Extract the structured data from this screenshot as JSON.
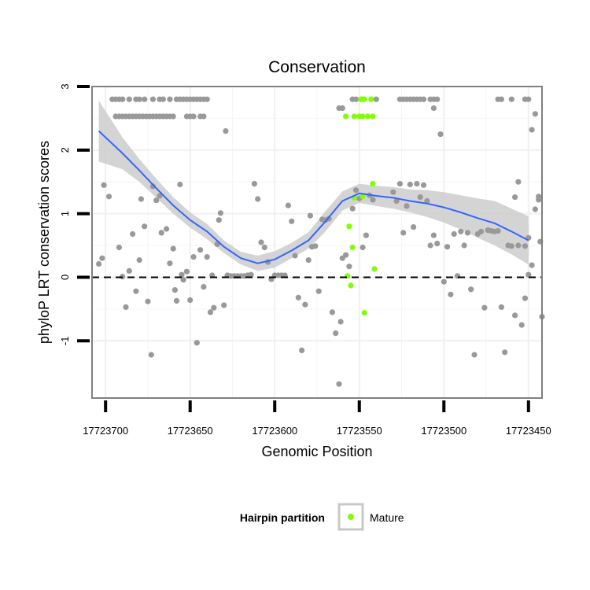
{
  "chart_data": {
    "type": "scatter",
    "title": "Conservation",
    "xlabel": "Genomic Position",
    "ylabel": "phyloP LRT conservation scores",
    "x_reversed": true,
    "xlim": [
      17723708,
      17723442
    ],
    "ylim": [
      -1.9,
      3.0
    ],
    "x_ticks": [
      17723700,
      17723650,
      17723600,
      17723550,
      17723500,
      17723450
    ],
    "x_tick_labels": [
      "17723700",
      "17723650",
      "17723600",
      "17723550",
      "17723500",
      "17723450"
    ],
    "y_ticks": [
      -1,
      0,
      1,
      2,
      3
    ],
    "y_tick_labels": [
      "-1",
      "0",
      "1",
      "2",
      "3"
    ],
    "reference_line": {
      "y": 0,
      "style": "dashed"
    },
    "grid": true,
    "legend": {
      "title": "Hairpin partition",
      "placement": "bottom",
      "entries": [
        {
          "label": "Mature",
          "color": "#7fff00"
        }
      ]
    },
    "colors": {
      "points": "#999999",
      "mature": "#7fff00",
      "smooth": "#3366ff",
      "ribbon": "#cccccc",
      "panel_border": "#808080"
    },
    "series": [
      {
        "points": [
          [
            17723696,
            2.8
          ],
          [
            17723694,
            2.8
          ],
          [
            17723692,
            2.8
          ],
          [
            17723690,
            2.8
          ],
          [
            17723686,
            2.8
          ],
          [
            17723682,
            2.8
          ],
          [
            17723680,
            2.8
          ],
          [
            17723677,
            2.8
          ],
          [
            17723672,
            2.8
          ],
          [
            17723668,
            2.8
          ],
          [
            17723666,
            2.8
          ],
          [
            17723662,
            2.8
          ],
          [
            17723658,
            2.8
          ],
          [
            17723656,
            2.8
          ],
          [
            17723654,
            2.8
          ],
          [
            17723652,
            2.8
          ],
          [
            17723650,
            2.8
          ],
          [
            17723648,
            2.8
          ],
          [
            17723646,
            2.8
          ],
          [
            17723644,
            2.8
          ],
          [
            17723642,
            2.8
          ],
          [
            17723640,
            2.8
          ],
          [
            17723694,
            2.53
          ],
          [
            17723692,
            2.53
          ],
          [
            17723690,
            2.53
          ],
          [
            17723688,
            2.53
          ],
          [
            17723686,
            2.53
          ],
          [
            17723684,
            2.53
          ],
          [
            17723682,
            2.53
          ],
          [
            17723680,
            2.53
          ],
          [
            17723678,
            2.53
          ],
          [
            17723676,
            2.53
          ],
          [
            17723674,
            2.53
          ],
          [
            17723672,
            2.53
          ],
          [
            17723670,
            2.53
          ],
          [
            17723668,
            2.53
          ],
          [
            17723666,
            2.53
          ],
          [
            17723664,
            2.53
          ],
          [
            17723662,
            2.53
          ],
          [
            17723660,
            2.53
          ],
          [
            17723652,
            2.53
          ],
          [
            17723650,
            2.53
          ],
          [
            17723648,
            2.53
          ],
          [
            17723644,
            2.53
          ],
          [
            17723642,
            2.53
          ],
          [
            17723562,
            2.66
          ],
          [
            17723560,
            2.66
          ],
          [
            17723554,
            2.8
          ],
          [
            17723552,
            2.8
          ],
          [
            17723540,
            2.8
          ],
          [
            17723526,
            2.8
          ],
          [
            17723524,
            2.8
          ],
          [
            17723522,
            2.8
          ],
          [
            17723520,
            2.8
          ],
          [
            17723518,
            2.8
          ],
          [
            17723516,
            2.8
          ],
          [
            17723514,
            2.8
          ],
          [
            17723512,
            2.8
          ],
          [
            17723508,
            2.8
          ],
          [
            17723506,
            2.8
          ],
          [
            17723504,
            2.8
          ],
          [
            17723506,
            2.66
          ],
          [
            17723468,
            2.8
          ],
          [
            17723466,
            2.8
          ],
          [
            17723460,
            2.8
          ],
          [
            17723452,
            2.8
          ],
          [
            17723450,
            2.8
          ],
          [
            17723704,
            0.21
          ],
          [
            17723702,
            0.3
          ],
          [
            17723701,
            1.45
          ],
          [
            17723698,
            1.27
          ],
          [
            17723692,
            0.47
          ],
          [
            17723690,
            0.01
          ],
          [
            17723688,
            -0.47
          ],
          [
            17723686,
            0.1
          ],
          [
            17723684,
            0.68
          ],
          [
            17723682,
            -0.22
          ],
          [
            17723680,
            0.27
          ],
          [
            17723679,
            1.23
          ],
          [
            17723677,
            0.8
          ],
          [
            17723675,
            -0.38
          ],
          [
            17723673,
            -1.22
          ],
          [
            17723672,
            1.43
          ],
          [
            17723670,
            1.21
          ],
          [
            17723668,
            1.28
          ],
          [
            17723667,
            0.7
          ],
          [
            17723664,
            0.76
          ],
          [
            17723662,
            0.22
          ],
          [
            17723660,
            0.45
          ],
          [
            17723659,
            -0.2
          ],
          [
            17723658,
            -0.37
          ],
          [
            17723656,
            1.46
          ],
          [
            17723655,
            0.04
          ],
          [
            17723654,
            -0.04
          ],
          [
            17723652,
            0.09
          ],
          [
            17723650,
            -0.36
          ],
          [
            17723648,
            0.32
          ],
          [
            17723646,
            -1.03
          ],
          [
            17723644,
            0.43
          ],
          [
            17723642,
            -0.15
          ],
          [
            17723640,
            0.32
          ],
          [
            17723638,
            -0.55
          ],
          [
            17723637,
            0.03
          ],
          [
            17723636,
            -0.48
          ],
          [
            17723634,
            0.52
          ],
          [
            17723633,
            0.9
          ],
          [
            17723632,
            1.01
          ],
          [
            17723630,
            -0.44
          ],
          [
            17723629,
            2.3
          ],
          [
            17723628,
            0.03
          ],
          [
            17723626,
            0.02
          ],
          [
            17723624,
            0.02
          ],
          [
            17723622,
            0.02
          ],
          [
            17723620,
            0.02
          ],
          [
            17723618,
            0.02
          ],
          [
            17723616,
            0.03
          ],
          [
            17723614,
            0.04
          ],
          [
            17723612,
            1.47
          ],
          [
            17723610,
            1.23
          ],
          [
            17723608,
            0.55
          ],
          [
            17723606,
            0.47
          ],
          [
            17723604,
            0.24
          ],
          [
            17723602,
            -0.03
          ],
          [
            17723600,
            0.03
          ],
          [
            17723598,
            0.03
          ],
          [
            17723596,
            0.03
          ],
          [
            17723594,
            0.03
          ],
          [
            17723592,
            1.13
          ],
          [
            17723590,
            0.88
          ],
          [
            17723588,
            0.34
          ],
          [
            17723586,
            -0.32
          ],
          [
            17723584,
            -1.15
          ],
          [
            17723582,
            -0.43
          ],
          [
            17723580,
            0.27
          ],
          [
            17723579,
            0.97
          ],
          [
            17723578,
            0.48
          ],
          [
            17723576,
            0.49
          ],
          [
            17723574,
            -0.22
          ],
          [
            17723572,
            0.91
          ],
          [
            17723570,
            0.9
          ],
          [
            17723568,
            0.92
          ],
          [
            17723566,
            -0.55
          ],
          [
            17723564,
            -0.88
          ],
          [
            17723562,
            -1.68
          ],
          [
            17723561,
            -0.7
          ],
          [
            17723560,
            0.3
          ],
          [
            17723558,
            0.35
          ],
          [
            17723556,
            0.17
          ],
          [
            17723554,
            1.08
          ],
          [
            17723552,
            1.37
          ],
          [
            17723550,
            1.24
          ],
          [
            17723548,
            0.47
          ],
          [
            17723546,
            0.66
          ],
          [
            17723544,
            1.29
          ],
          [
            17723542,
            1.22
          ],
          [
            17723530,
            1.34
          ],
          [
            17723528,
            1.2
          ],
          [
            17723526,
            1.47
          ],
          [
            17723524,
            0.7
          ],
          [
            17723522,
            1.12
          ],
          [
            17723520,
            1.46
          ],
          [
            17723518,
            0.79
          ],
          [
            17723516,
            1.47
          ],
          [
            17723514,
            1.26
          ],
          [
            17723512,
            1.45
          ],
          [
            17723510,
            1.2
          ],
          [
            17723508,
            0.5
          ],
          [
            17723506,
            0.66
          ],
          [
            17723504,
            0.53
          ],
          [
            17723502,
            2.25
          ],
          [
            17723500,
            -0.07
          ],
          [
            17723498,
            0.48
          ],
          [
            17723496,
            -0.27
          ],
          [
            17723494,
            0.68
          ],
          [
            17723492,
            0.02
          ],
          [
            17723490,
            0.72
          ],
          [
            17723488,
            0.5
          ],
          [
            17723486,
            0.7
          ],
          [
            17723484,
            -0.19
          ],
          [
            17723482,
            -1.22
          ],
          [
            17723480,
            0.68
          ],
          [
            17723478,
            0.72
          ],
          [
            17723476,
            -0.48
          ],
          [
            17723474,
            0.74
          ],
          [
            17723472,
            0.73
          ],
          [
            17723470,
            0.72
          ],
          [
            17723468,
            0.73
          ],
          [
            17723466,
            -0.47
          ],
          [
            17723464,
            -1.18
          ],
          [
            17723462,
            0.5
          ],
          [
            17723460,
            0.49
          ],
          [
            17723458,
            -0.6
          ],
          [
            17723456,
            0.5
          ],
          [
            17723454,
            -0.75
          ],
          [
            17723452,
            0.49
          ],
          [
            17723450,
            0.04
          ],
          [
            17723448,
            0.19
          ],
          [
            17723446,
            1.07
          ],
          [
            17723458,
            1.26
          ],
          [
            17723456,
            1.5
          ],
          [
            17723452,
            -0.33
          ],
          [
            17723450,
            0.62
          ],
          [
            17723448,
            2.32
          ],
          [
            17723446,
            2.57
          ],
          [
            17723444,
            1.27
          ],
          [
            17723443,
            0.56
          ],
          [
            17723442,
            -0.62
          ],
          [
            17723444,
            1.22
          ]
        ]
      },
      {
        "name": "Mature",
        "points": [
          [
            17723558,
            2.53
          ],
          [
            17723553,
            2.53
          ],
          [
            17723550,
            2.53
          ],
          [
            17723548,
            2.53
          ],
          [
            17723545,
            2.53
          ],
          [
            17723542,
            2.53
          ],
          [
            17723549,
            2.8
          ],
          [
            17723547,
            2.8
          ],
          [
            17723543,
            2.8
          ],
          [
            17723553,
            1.25
          ],
          [
            17723548,
            1.27
          ],
          [
            17723542,
            1.47
          ],
          [
            17723556,
            0.8
          ],
          [
            17723554,
            0.47
          ],
          [
            17723557,
            0.02
          ],
          [
            17723555,
            -0.13
          ],
          [
            17723541,
            0.13
          ],
          [
            17723547,
            -0.56
          ]
        ]
      }
    ],
    "smooth": {
      "x": [
        17723704,
        17723690,
        17723680,
        17723670,
        17723660,
        17723650,
        17723640,
        17723630,
        17723620,
        17723610,
        17723600,
        17723590,
        17723580,
        17723570,
        17723560,
        17723550,
        17723540,
        17723530,
        17723520,
        17723510,
        17723500,
        17723490,
        17723480,
        17723470,
        17723460,
        17723450
      ],
      "y": [
        2.3,
        1.95,
        1.68,
        1.4,
        1.13,
        0.9,
        0.72,
        0.48,
        0.3,
        0.22,
        0.28,
        0.42,
        0.58,
        0.88,
        1.2,
        1.32,
        1.28,
        1.25,
        1.2,
        1.16,
        1.1,
        1.02,
        0.93,
        0.85,
        0.72,
        0.58
      ],
      "lower": [
        1.82,
        1.7,
        1.5,
        1.25,
        1.0,
        0.78,
        0.6,
        0.38,
        0.2,
        0.1,
        0.15,
        0.3,
        0.45,
        0.72,
        1.05,
        1.17,
        1.12,
        1.08,
        1.02,
        0.95,
        0.86,
        0.75,
        0.62,
        0.5,
        0.36,
        0.2
      ],
      "upper": [
        2.78,
        2.2,
        1.86,
        1.55,
        1.26,
        1.02,
        0.84,
        0.58,
        0.4,
        0.34,
        0.41,
        0.54,
        0.71,
        1.04,
        1.35,
        1.47,
        1.44,
        1.42,
        1.38,
        1.37,
        1.34,
        1.29,
        1.24,
        1.2,
        1.08,
        0.96
      ]
    }
  }
}
